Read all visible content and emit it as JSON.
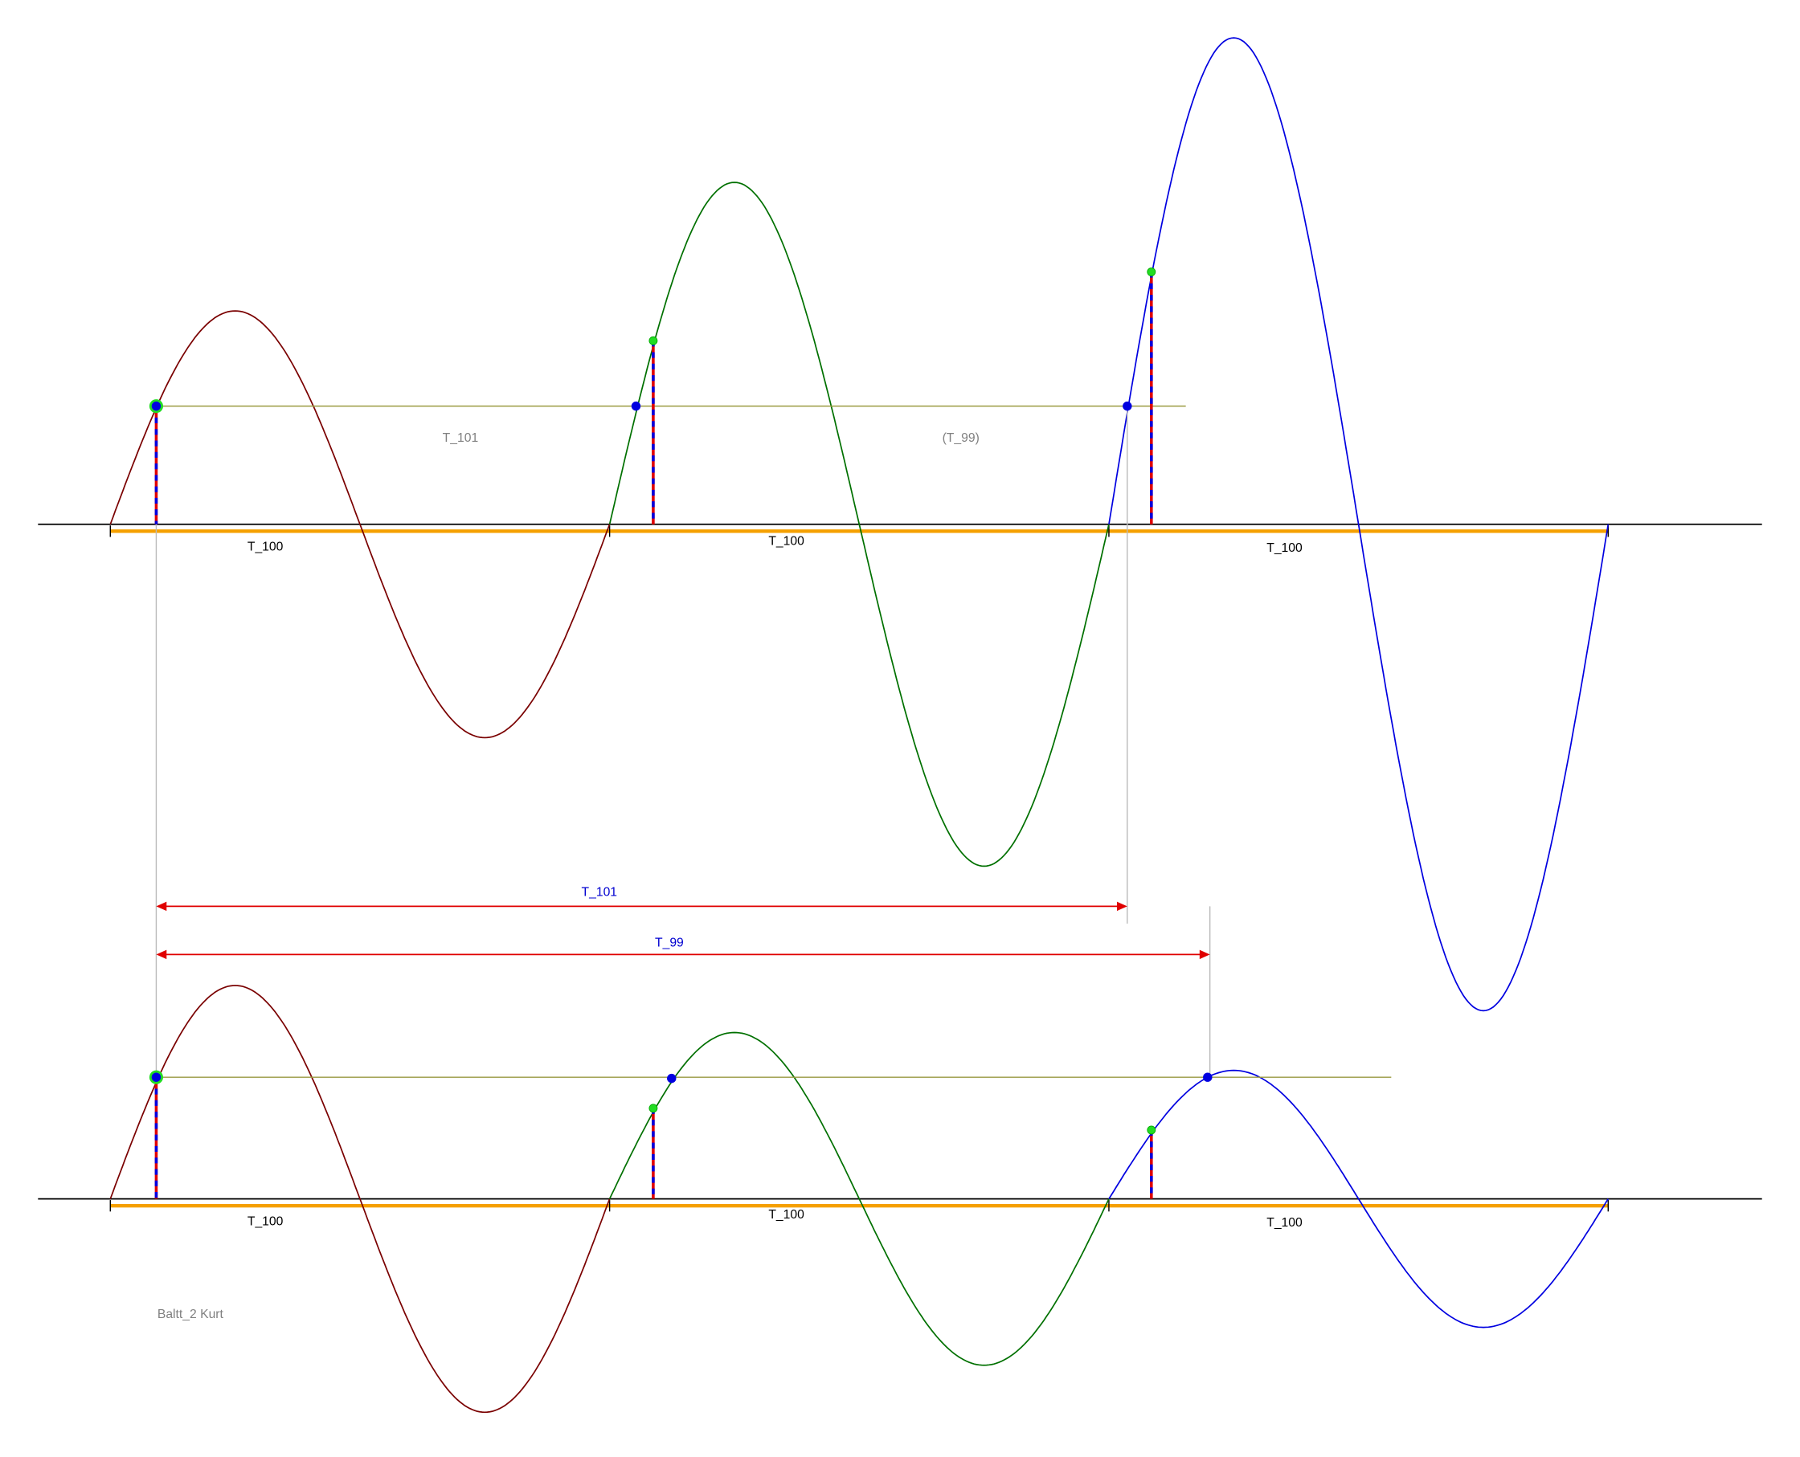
{
  "labels": {
    "period_top": [
      "T_100",
      "T_100",
      "T_100"
    ],
    "period_bottom": [
      "T_100",
      "T_100",
      "T_100"
    ],
    "gap_t101_gray": "T_101",
    "gap_t99_gray": "(T_99)",
    "arrow_t101": "T_101",
    "arrow_t99": "T_99",
    "caption": "Baltt_2 Kurt"
  },
  "colors": {
    "wave_1": "#7a0000",
    "wave_2": "#007000",
    "wave_3": "#0000e0",
    "axis": "#000000",
    "period_bar": "#f5a000",
    "level_line": "#9a9a40",
    "arrow": "#e00000",
    "arrow_label": "#0000d0",
    "gray_label": "#808080",
    "point_blue": "#0000e0",
    "point_green": "#22dd22"
  }
}
